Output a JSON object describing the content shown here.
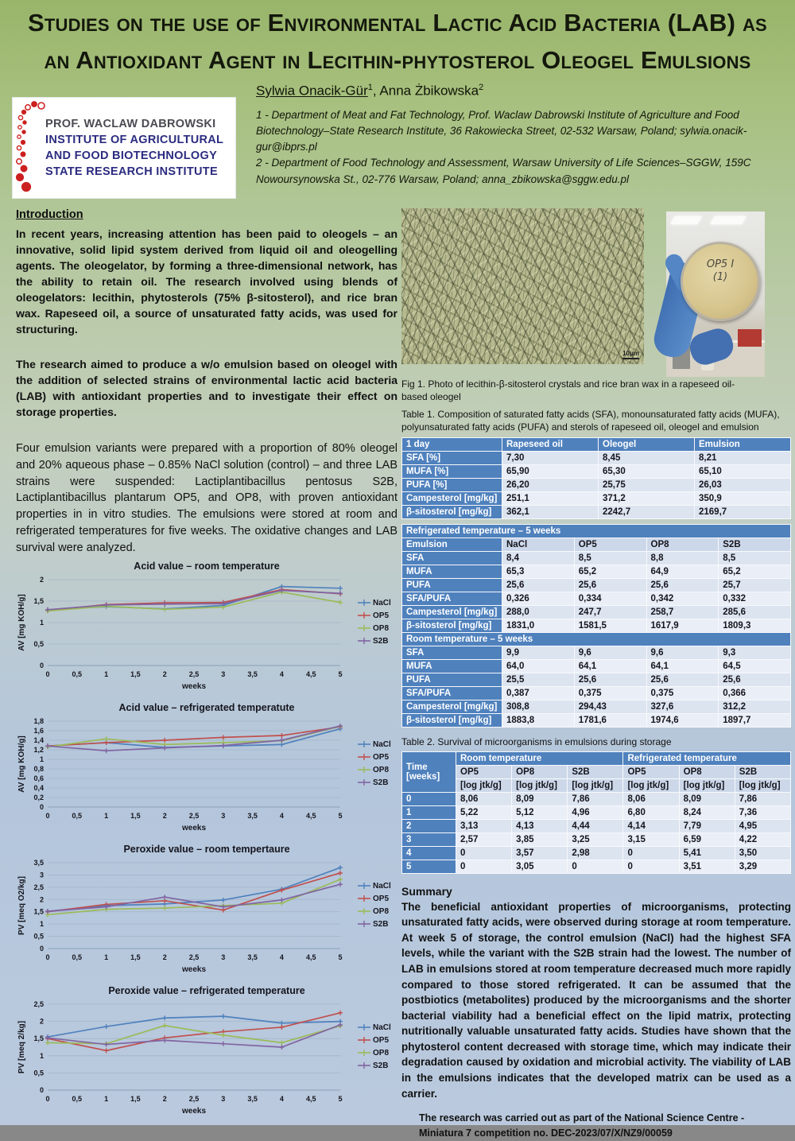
{
  "header": {
    "title_line1": "Studies on the use of Environmental Lactic Acid Bacteria (LAB) as",
    "title_line2": "an Antioxidant Agent in Lecithin-phytosterol Oleogel Emulsions",
    "authors": {
      "a1": "Sylwia Onacik-Gür",
      "a1_sup": "1",
      "sep": ", ",
      "a2": "Anna Żbikowska",
      "a2_sup": "2"
    },
    "affiliations": [
      "1 - Department of Meat and Fat Technology, Prof. Waclaw Dabrowski Institute of Agriculture and Food Biotechnology–State Research Institute, 36 Rakowiecka Street, 02-532 Warsaw, Poland; sylwia.onacik-gur@ibprs.pl",
      "2 - Department of Food Technology and Assessment, Warsaw University of Life Sciences–SGGW, 159C Nowoursynowska St., 02-776 Warsaw, Poland; anna_zbikowska@sggw.edu.pl"
    ],
    "logo_lines": [
      "PROF. WACLAW DABROWSKI",
      "INSTITUTE OF AGRICULTURAL",
      "AND FOOD BIOTECHNOLOGY",
      "STATE RESEARCH INSTITUTE"
    ]
  },
  "intro": {
    "heading": "Introduction",
    "p1": "In recent years, increasing attention has been paid to oleogels – an innovative, solid lipid system derived from liquid oil and oleogelling agents. The oleogelator, by forming a three-dimensional network, has the ability to retain oil. The research involved using blends of oleogelators: lecithin, phytosterols (75% β-sitosterol), and rice bran wax. Rapeseed oil, a source of unsaturated fatty acids, was used for structuring.",
    "p2": "The research aimed to produce a w/o emulsion based on oleogel with the addition of selected strains of environmental lactic acid bacteria (LAB) with antioxidant properties and to investigate their effect on storage properties.",
    "p3": "Four emulsion variants were prepared with a proportion of 80% oleogel and 20% aqueous phase – 0.85% NaCl solution (control) – and three LAB strains were suspended: Lactiplantibacillus pentosus S2B, Lactiplantibacillus plantarum OP5, and OP8, with proven antioxidant properties in in vitro studies. The emulsions were stored at room and refrigerated temperatures for five weeks. The oxidative changes and LAB survival were analyzed."
  },
  "fig1": {
    "caption": "Fig 1. Photo of lecithin-β-sitosterol crystals and rice bran wax in a rapeseed oil-based oleogel",
    "scale_label": "10μm",
    "petri_label_line1": "OP5 I",
    "petri_label_line2": "(1)"
  },
  "table1": {
    "caption": "Table 1. Composition of saturated fatty acids (SFA), monounsaturated fatty acids (MUFA), polyunsaturated fatty acids (PUFA) and sterols of rapeseed oil, oleogel and emulsion",
    "day1": {
      "header": [
        "1 day",
        "Rapeseed oil",
        "Oleogel",
        "Emulsion"
      ],
      "rows": [
        [
          "SFA [%]",
          "7,30",
          "8,45",
          "8,21"
        ],
        [
          "MUFA [%]",
          "65,90",
          "65,30",
          "65,10"
        ],
        [
          "PUFA [%]",
          "26,20",
          "25,75",
          "26,03"
        ],
        [
          "Campesterol [mg/kg]",
          "251,1",
          "371,2",
          "350,9"
        ],
        [
          "β-sitosterol [mg/kg]",
          "362,1",
          "2242,7",
          "2169,7"
        ]
      ]
    },
    "refrigerated": {
      "band": "Refrigerated temperature – 5 weeks",
      "header": [
        "Emulsion",
        "NaCl",
        "OP5",
        "OP8",
        "S2B"
      ],
      "rows": [
        [
          "SFA",
          "8,4",
          "8,5",
          "8,8",
          "8,5"
        ],
        [
          "MUFA",
          "65,3",
          "65,2",
          "64,9",
          "65,2"
        ],
        [
          "PUFA",
          "25,6",
          "25,6",
          "25,6",
          "25,7"
        ],
        [
          "SFA/PUFA",
          "0,326",
          "0,334",
          "0,342",
          "0,332"
        ],
        [
          "Campesterol [mg/kg]",
          "288,0",
          "247,7",
          "258,7",
          "285,6"
        ],
        [
          "β-sitosterol [mg/kg]",
          "1831,0",
          "1581,5",
          "1617,9",
          "1809,3"
        ]
      ]
    },
    "room": {
      "band": "Room temperature – 5 weeks",
      "rows": [
        [
          "SFA",
          "9,9",
          "9,6",
          "9,6",
          "9,3"
        ],
        [
          "MUFA",
          "64,0",
          "64,1",
          "64,1",
          "64,5"
        ],
        [
          "PUFA",
          "25,5",
          "25,6",
          "25,6",
          "25,6"
        ],
        [
          "SFA/PUFA",
          "0,387",
          "0,375",
          "0,375",
          "0,366"
        ],
        [
          "Campesterol [mg/kg]",
          "308,8",
          "294,43",
          "327,6",
          "312,2"
        ],
        [
          "β-sitosterol [mg/kg]",
          "1883,8",
          "1781,6",
          "1974,6",
          "1897,7"
        ]
      ]
    }
  },
  "table2": {
    "caption": "Table 2. Survival of microorganisms in emulsions during storage",
    "time_label_line1": "Time",
    "time_label_line2": "[weeks]",
    "groups": [
      "Room temperature",
      "Refrigerated temperature"
    ],
    "sub_headers": [
      "OP5",
      "OP8",
      "S2B",
      "OP5",
      "OP8",
      "S2B"
    ],
    "unit": "[log jtk/g]",
    "rows": [
      [
        "0",
        "8,06",
        "8,09",
        "7,86",
        "8,06",
        "8,09",
        "7,86"
      ],
      [
        "1",
        "5,22",
        "5,12",
        "4,96",
        "6,80",
        "8,24",
        "7,36"
      ],
      [
        "2",
        "3,13",
        "4,13",
        "4,44",
        "4,14",
        "7,79",
        "4,95"
      ],
      [
        "3",
        "2,57",
        "3,85",
        "3,25",
        "3,15",
        "6,59",
        "4,22"
      ],
      [
        "4",
        "0",
        "3,57",
        "2,98",
        "0",
        "5,41",
        "3,50"
      ],
      [
        "5",
        "0",
        "3,05",
        "0",
        "0",
        "3,51",
        "3,29"
      ]
    ]
  },
  "summary": {
    "heading": "Summary",
    "text": "The beneficial antioxidant properties of microorganisms, protecting unsaturated fatty acids, were observed during storage at room temperature. At week 5 of storage, the control emulsion (NaCl) had the highest SFA levels, while the variant with the S2B strain had the lowest. The number of LAB in emulsions stored at room temperature decreased much more rapidly compared to those stored refrigerated. It can be assumed that the postbiotics (metabolites) produced by the microorganisms and the shorter bacterial viability had a beneficial effect on the lipid matrix, protecting nutritionally valuable unsaturated fatty acids. Studies have shown that the phytosterol content decreased with storage time, which may indicate their degradation caused by oxidation and microbial activity. The viability of LAB in the emulsions indicates that the developed matrix can be used as a carrier.",
    "funding": "The research was carried out as part of the National Science Centre - Miniatura 7 competition no. DEC-2023/07/X/NZ9/00059"
  },
  "chart_data": [
    {
      "type": "line",
      "title": "Acid value – room temperature",
      "xlabel": "weeks",
      "ylabel": "AV [mg KOH/g]",
      "x": [
        0,
        1,
        2,
        3,
        4,
        5
      ],
      "xticks": [
        0,
        0.5,
        1,
        1.5,
        2,
        2.5,
        3,
        3.5,
        4,
        4.5,
        5
      ],
      "ylim": [
        0,
        2
      ],
      "ytick": 0.5,
      "grid": true,
      "legend_position": "right",
      "series": [
        {
          "name": "NaCl",
          "color": "#4f81bd",
          "values": [
            1.3,
            1.37,
            1.32,
            1.4,
            1.84,
            1.8
          ]
        },
        {
          "name": "OP5",
          "color": "#c0504d",
          "values": [
            1.28,
            1.42,
            1.46,
            1.47,
            1.77,
            1.67
          ]
        },
        {
          "name": "OP8",
          "color": "#9bbb59",
          "values": [
            1.27,
            1.38,
            1.31,
            1.36,
            1.71,
            1.47
          ]
        },
        {
          "name": "S2B",
          "color": "#8064a2",
          "values": [
            1.3,
            1.41,
            1.43,
            1.44,
            1.75,
            1.68
          ]
        }
      ]
    },
    {
      "type": "line",
      "title": "Acid value – refrigerated temperatute",
      "xlabel": "weeks",
      "ylabel": "AV [mg KOH/g]",
      "x": [
        0,
        1,
        2,
        3,
        4,
        5
      ],
      "xticks": [
        0,
        0.5,
        1,
        1.5,
        2,
        2.5,
        3,
        3.5,
        4,
        4.5,
        5
      ],
      "ylim": [
        0,
        1.8
      ],
      "ytick": 0.2,
      "grid": true,
      "legend_position": "right",
      "series": [
        {
          "name": "NaCl",
          "color": "#4f81bd",
          "values": [
            1.28,
            1.35,
            1.25,
            1.28,
            1.31,
            1.64
          ]
        },
        {
          "name": "OP5",
          "color": "#c0504d",
          "values": [
            1.28,
            1.35,
            1.4,
            1.46,
            1.5,
            1.68
          ]
        },
        {
          "name": "OP8",
          "color": "#9bbb59",
          "values": [
            1.26,
            1.43,
            1.31,
            1.35,
            1.39,
            1.69
          ]
        },
        {
          "name": "S2B",
          "color": "#8064a2",
          "values": [
            1.28,
            1.18,
            1.24,
            1.29,
            1.4,
            1.7
          ]
        }
      ]
    },
    {
      "type": "line",
      "title": "Peroxide value – room tempertaure",
      "xlabel": "weeks",
      "ylabel": "PV [meq O2/kg]",
      "x": [
        0,
        1,
        2,
        3,
        4,
        5
      ],
      "xticks": [
        0,
        0.5,
        1,
        1.5,
        2,
        2.5,
        3,
        3.5,
        4,
        4.5,
        5
      ],
      "ylim": [
        0,
        3.5
      ],
      "ytick": 0.5,
      "grid": true,
      "legend_position": "right",
      "series": [
        {
          "name": "NaCl",
          "color": "#4f81bd",
          "values": [
            1.52,
            1.75,
            1.82,
            1.98,
            2.42,
            3.3
          ]
        },
        {
          "name": "OP5",
          "color": "#c0504d",
          "values": [
            1.5,
            1.8,
            1.95,
            1.57,
            2.38,
            3.08
          ]
        },
        {
          "name": "OP8",
          "color": "#9bbb59",
          "values": [
            1.38,
            1.6,
            1.65,
            1.75,
            1.85,
            2.82
          ]
        },
        {
          "name": "S2B",
          "color": "#8064a2",
          "values": [
            1.52,
            1.7,
            2.1,
            1.7,
            1.98,
            2.62
          ]
        }
      ]
    },
    {
      "type": "line",
      "title": "Peroxide value – refrigerated temperature",
      "xlabel": "weeks",
      "ylabel": "PV [meq 2/kg]",
      "x": [
        0,
        1,
        2,
        3,
        4,
        5
      ],
      "xticks": [
        0,
        0.5,
        1,
        1.5,
        2,
        2.5,
        3,
        3.5,
        4,
        4.5,
        5
      ],
      "ylim": [
        0,
        2.5
      ],
      "ytick": 0.5,
      "grid": true,
      "legend_position": "right",
      "series": [
        {
          "name": "NaCl",
          "color": "#4f81bd",
          "values": [
            1.55,
            1.85,
            2.1,
            2.15,
            1.95,
            2.0
          ]
        },
        {
          "name": "OP5",
          "color": "#c0504d",
          "values": [
            1.5,
            1.15,
            1.52,
            1.7,
            1.83,
            2.25
          ]
        },
        {
          "name": "OP8",
          "color": "#9bbb59",
          "values": [
            1.38,
            1.35,
            1.88,
            1.6,
            1.38,
            1.87
          ]
        },
        {
          "name": "S2B",
          "color": "#8064a2",
          "values": [
            1.52,
            1.33,
            1.45,
            1.35,
            1.25,
            1.9
          ]
        }
      ]
    }
  ]
}
